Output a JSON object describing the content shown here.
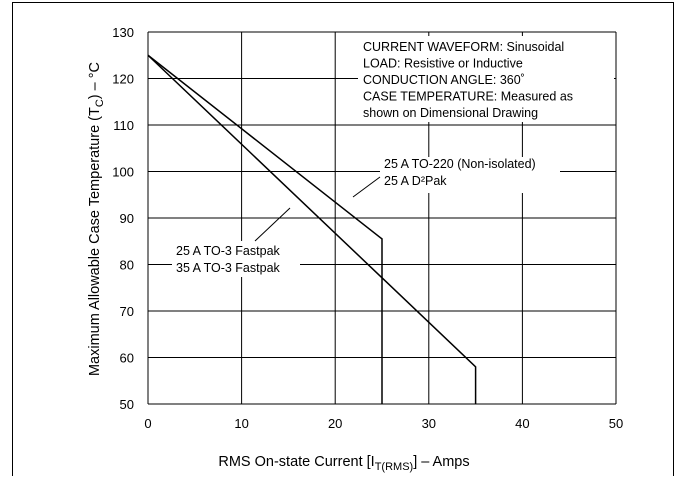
{
  "chart_data": {
    "type": "line",
    "xlabel": "RMS On-state Current [I",
    "xlabel_sub": "T(RMS)",
    "xlabel_end": "] – Amps",
    "ylabel": "Maximum Allowable Case Temperature (T",
    "ylabel_sub": "C",
    "ylabel_end": ") – °C",
    "xlim": [
      0,
      50
    ],
    "ylim": [
      50,
      130
    ],
    "x_ticks": [
      "0",
      "10",
      "20",
      "30",
      "40",
      "50"
    ],
    "y_ticks": [
      "50",
      "60",
      "70",
      "80",
      "90",
      "100",
      "110",
      "120",
      "130"
    ],
    "grid": true,
    "conditions": [
      "CURRENT WAVEFORM: Sinusoidal",
      "LOAD: Resistive or Inductive",
      "CONDUCTION ANGLE: 360˚",
      "CASE TEMPERATURE: Measured as",
      "shown on Dimensional Drawing"
    ],
    "series": [
      {
        "labels": [
          "25 A TO-220 (Non-isolated)",
          "25 A D²Pak"
        ],
        "points": [
          [
            0,
            125
          ],
          [
            25,
            85.5
          ]
        ],
        "drop_to": 50
      },
      {
        "labels": [
          "25 A TO-3 Fastpak",
          "35 A TO-3 Fastpak"
        ],
        "points": [
          [
            0,
            125
          ],
          [
            35,
            58
          ]
        ],
        "drop_to": 50
      }
    ]
  }
}
